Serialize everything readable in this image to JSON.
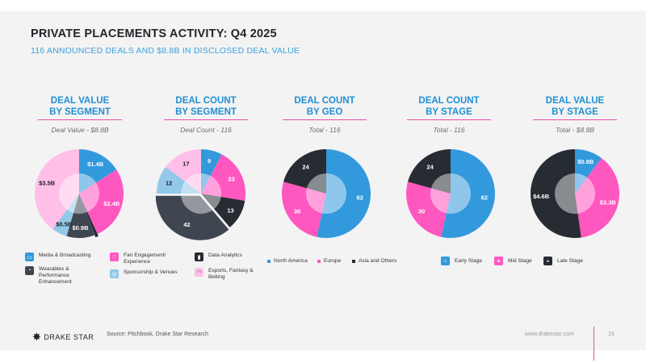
{
  "header": {
    "title": "PRIVATE PLACEMENTS ACTIVITY: Q4 2025",
    "subtitle": "116 ANNOUNCED DEALS AND $8.8B IN DISCLOSED DEAL VALUE"
  },
  "colors": {
    "blue": "#3399dd",
    "pink": "#ff57c0",
    "dark": "#272c33",
    "lightblue": "#93c8e8",
    "lightpink": "#ffbfe8",
    "slate": "#3f4650",
    "gray": "#9a9ea6"
  },
  "chart_data": [
    {
      "type": "pie",
      "title": "DEAL VALUE\nBY SEGMENT",
      "subtitle": "Deal Value - $8.8B",
      "slices": [
        {
          "label": "$1.4B",
          "value": 1.4,
          "color": "#3399dd",
          "segment": "Media & Broadcasting"
        },
        {
          "label": "$2.4B",
          "value": 2.4,
          "color": "#ff57c0",
          "segment": "Fan Engagement/ Experience"
        },
        {
          "label": "",
          "value": 0.1,
          "color": "#272c33",
          "segment": "Data Analytics"
        },
        {
          "label": "$0.9B",
          "value": 0.9,
          "color": "#3f4650",
          "segment": "Wearables & Performance Enhancement"
        },
        {
          "label": "$0.5B",
          "value": 0.5,
          "color": "#93c8e8",
          "segment": "Sponsorship & Venues"
        },
        {
          "label": "$3.5B",
          "value": 3.5,
          "color": "#ffbfe8",
          "segment": "Esports, Fantasy & Betting"
        }
      ]
    },
    {
      "type": "pie",
      "title": "DEAL COUNT\nBY SEGMENT",
      "subtitle": "Deal Count - 116",
      "slices": [
        {
          "label": "9",
          "value": 9,
          "color": "#3399dd"
        },
        {
          "label": "23",
          "value": 23,
          "color": "#ff57c0"
        },
        {
          "label": "13",
          "value": 13,
          "color": "#272c33"
        },
        {
          "label": "42",
          "value": 42,
          "color": "#3f4650"
        },
        {
          "label": "12",
          "value": 12,
          "color": "#93c8e8"
        },
        {
          "label": "17",
          "value": 17,
          "color": "#ffbfe8"
        }
      ]
    },
    {
      "type": "pie",
      "title": "DEAL COUNT\nBY GEO",
      "subtitle": "Total - 116",
      "slices": [
        {
          "label": "62",
          "value": 62,
          "color": "#3399dd",
          "segment": "North America"
        },
        {
          "label": "30",
          "value": 30,
          "color": "#ff57c0",
          "segment": "Europe"
        },
        {
          "label": "24",
          "value": 24,
          "color": "#272c33",
          "segment": "Asia and Others"
        }
      ]
    },
    {
      "type": "pie",
      "title": "DEAL COUNT\nBY STAGE",
      "subtitle": "Total - 116",
      "slices": [
        {
          "label": "62",
          "value": 62,
          "color": "#3399dd",
          "segment": "Early Stage"
        },
        {
          "label": "30",
          "value": 30,
          "color": "#ff57c0",
          "segment": "Mid Stage"
        },
        {
          "label": "24",
          "value": 24,
          "color": "#272c33",
          "segment": "Late Stage"
        }
      ]
    },
    {
      "type": "pie",
      "title": "DEAL VALUE\nBY STAGE",
      "subtitle": "Total - $8.8B",
      "slices": [
        {
          "label": "$0.9B",
          "value": 0.9,
          "color": "#3399dd"
        },
        {
          "label": "$3.3B",
          "value": 3.3,
          "color": "#ff57c0"
        },
        {
          "label": "$4.6B",
          "value": 4.6,
          "color": "#272c33"
        }
      ]
    }
  ],
  "legends": {
    "segment": [
      {
        "label": "Media & Broadcasting",
        "icon": "tv-icon",
        "color": "#3399dd"
      },
      {
        "label": "Fan Engagement/ Experience",
        "icon": "heart-icon",
        "color": "#ff57c0"
      },
      {
        "label": "Data Analytics",
        "icon": "chart-icon",
        "color": "#272c33"
      },
      {
        "label": "Wearables & Performance Enhancement",
        "icon": "gauge-icon",
        "color": "#3f4650"
      },
      {
        "label": "Sponsorship & Venues",
        "icon": "venue-icon",
        "color": "#93c8e8"
      },
      {
        "label": "Esports, Fantasy & Betting",
        "icon": "gamepad-icon",
        "color": "#ffbfe8"
      }
    ],
    "geo": [
      {
        "label": "North America",
        "color": "#3399dd"
      },
      {
        "label": "Europe",
        "color": "#ff57c0"
      },
      {
        "label": "Asia and Others",
        "color": "#272c33"
      }
    ],
    "stage": [
      {
        "label": "Early Stage",
        "icon": "sunrise-icon",
        "color": "#3399dd"
      },
      {
        "label": "Mid Stage",
        "icon": "sun-icon",
        "color": "#ff57c0"
      },
      {
        "label": "Late Stage",
        "icon": "sunset-icon",
        "color": "#272c33"
      }
    ]
  },
  "footer": {
    "logo": "DRAKE STAR",
    "source": "Source: Pitchbook, Drake Star Research",
    "website": "www.drakestar.com",
    "page": "19"
  }
}
